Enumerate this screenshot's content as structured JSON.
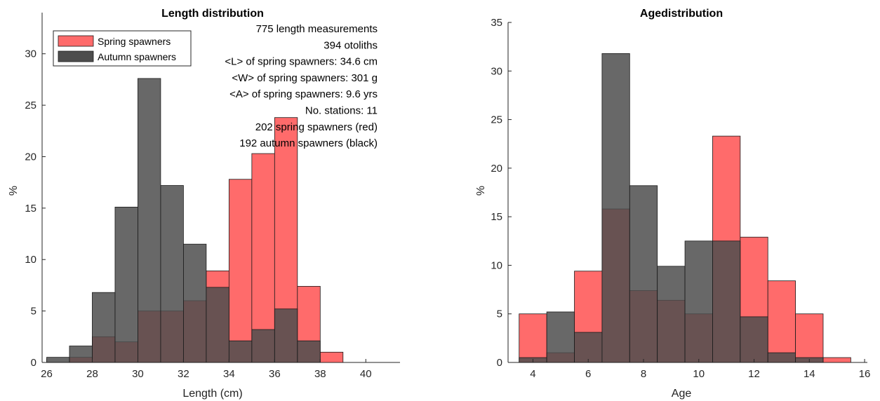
{
  "chart_data": [
    {
      "type": "histogram",
      "title": "Length distribution",
      "xlabel": "Length (cm)",
      "ylabel": "%",
      "xlim": [
        25.8,
        41.5
      ],
      "ylim": [
        0,
        34
      ],
      "xticks": [
        26,
        28,
        30,
        32,
        34,
        36,
        38,
        40
      ],
      "yticks": [
        0,
        5,
        10,
        15,
        20,
        25,
        30
      ],
      "bin_width": 1,
      "legend_position": "top-left",
      "legend": [
        "Spring spawners",
        "Autumn spawners"
      ],
      "annotations": [
        "775 length measurements",
        "394 otoliths",
        "<L> of spring spawners: 34.6 cm",
        "<W> of spring spawners: 301 g",
        "<A> of spring spawners: 9.6 yrs",
        "No. stations: 11",
        "202 spring spawners (red)",
        "192 autumn spawners (black)"
      ],
      "series": [
        {
          "name": "Spring spawners",
          "color": "#ff6b6b",
          "x": [
            27,
            28,
            29,
            30,
            31,
            32,
            33,
            34,
            35,
            36,
            37,
            38
          ],
          "values": [
            0.5,
            2.5,
            2.0,
            5.0,
            5.0,
            6.0,
            8.9,
            17.8,
            20.3,
            23.8,
            7.4,
            1.0
          ]
        },
        {
          "name": "Autumn spawners",
          "color": "#4d4d4d",
          "x": [
            26,
            27,
            28,
            29,
            30,
            31,
            32,
            33,
            34,
            35,
            36,
            37
          ],
          "values": [
            0.5,
            1.6,
            6.8,
            15.1,
            27.6,
            17.2,
            11.5,
            7.3,
            2.1,
            3.2,
            5.2,
            2.1
          ]
        }
      ]
    },
    {
      "type": "histogram",
      "title": "Agedistribution",
      "xlabel": "Age",
      "ylabel": "%",
      "xlim": [
        3.1,
        16.1
      ],
      "ylim": [
        0,
        35
      ],
      "xticks": [
        4,
        6,
        8,
        10,
        12,
        14,
        16
      ],
      "yticks": [
        0,
        5,
        10,
        15,
        20,
        25,
        30,
        35
      ],
      "bin_width": 1,
      "series": [
        {
          "name": "Spring spawners",
          "color": "#ff6b6b",
          "x": [
            3.5,
            4.5,
            5.5,
            6.5,
            7.5,
            8.5,
            9.5,
            10.5,
            11.5,
            12.5,
            13.5,
            14.5
          ],
          "values": [
            5.0,
            1.0,
            9.4,
            15.8,
            7.4,
            6.4,
            5.0,
            23.3,
            12.9,
            8.4,
            5.0,
            0.5
          ]
        },
        {
          "name": "Autumn spawners",
          "color": "#4d4d4d",
          "x": [
            3.5,
            4.5,
            5.5,
            6.5,
            7.5,
            8.5,
            9.5,
            10.5,
            11.5,
            12.5,
            13.5
          ],
          "values": [
            0.5,
            5.2,
            3.1,
            31.8,
            18.2,
            9.9,
            12.5,
            12.5,
            4.7,
            1.0,
            0.5
          ]
        }
      ]
    }
  ]
}
